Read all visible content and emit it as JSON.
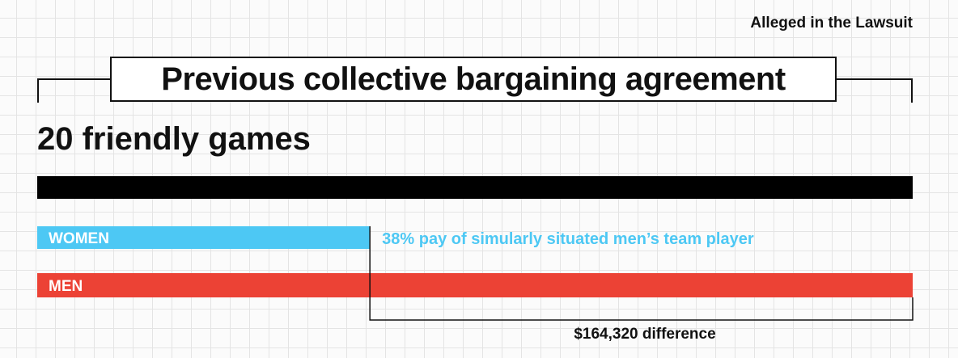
{
  "header": {
    "tag": "Alleged in the Lawsuit",
    "title": "Previous collective bargaining agreement",
    "subtitle": "20 friendly games"
  },
  "colors": {
    "total": "#000000",
    "women": "#4dc8f4",
    "men": "#ec4235",
    "ink": "#111111"
  },
  "chart_data": {
    "type": "bar",
    "orientation": "horizontal",
    "unit": "percent of men's pay",
    "xlim": [
      0,
      100
    ],
    "grid": true,
    "series": [
      {
        "key": "total",
        "value": 100,
        "color": "#000000"
      },
      {
        "key": "women",
        "label": "WOMEN",
        "value": 38,
        "color": "#4dc8f4"
      },
      {
        "key": "men",
        "label": "MEN",
        "value": 100,
        "color": "#ec4235"
      }
    ],
    "annotations": {
      "women_note": "38% pay of simularly situated men’s team player",
      "difference": "$164,320 difference"
    }
  }
}
